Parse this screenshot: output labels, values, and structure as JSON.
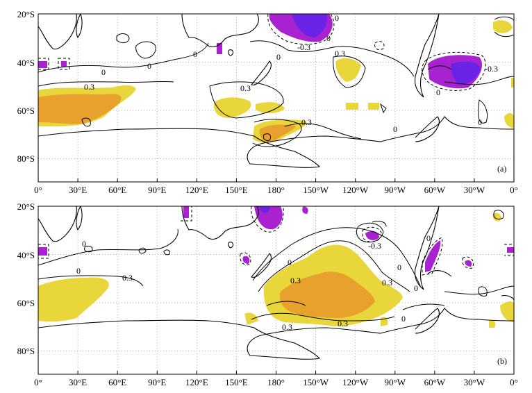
{
  "panels": [
    {
      "id": "a",
      "tag": "(a)",
      "y_ticks": [
        "20°S",
        "40°S",
        "60°S",
        "80°S"
      ],
      "x_ticks": [
        "0°",
        "30°E",
        "60°E",
        "90°E",
        "120°E",
        "150°E",
        "180°",
        "150°W",
        "120°W",
        "90°W",
        "60°W",
        "30°W",
        "0°"
      ],
      "contour_labels": [
        "0",
        "0",
        "0",
        "0",
        "0",
        "0",
        "0",
        "0.3",
        "0.3",
        "0.3",
        "0.3",
        "-0.3",
        "-0.3",
        "0",
        "0"
      ]
    },
    {
      "id": "b",
      "tag": "(b)",
      "y_ticks": [
        "20°S",
        "40°S",
        "60°S",
        "80°S"
      ],
      "x_ticks": [
        "0°",
        "30°E",
        "60°E",
        "90°E",
        "120°E",
        "150°E",
        "180°",
        "150°W",
        "120°W",
        "90°W",
        "60°W",
        "30°W",
        "0°"
      ],
      "contour_labels": [
        "0",
        "0",
        "0",
        "0",
        "0",
        "0.3",
        "0.3",
        "0.3",
        "0.3",
        "0.3",
        "-0.3",
        "0",
        "0"
      ]
    }
  ],
  "colors": {
    "positive_weak": "#e8d63a",
    "positive_strong": "#e8a12c",
    "negative_weak": "#a822d0",
    "negative_strong": "#6a22e6",
    "contour": "#000000",
    "grid": "#9a9a9a"
  }
}
